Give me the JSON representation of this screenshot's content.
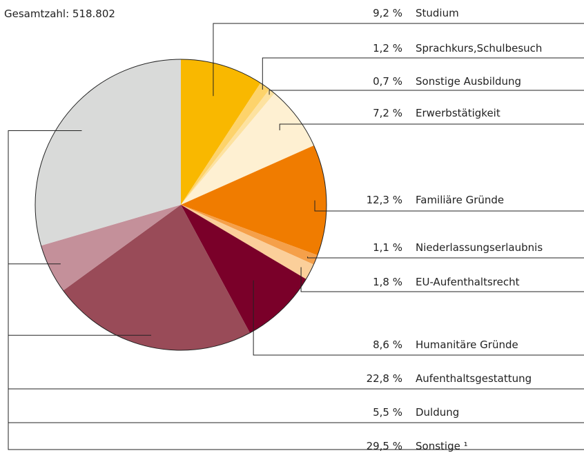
{
  "chart_data": {
    "type": "pie",
    "title": "Gesamtzahl: 518.802",
    "categories": [
      "Studium",
      "Sprachkurs,Schulbesuch",
      "Sonstige Ausbildung",
      "Erwerbstätigkeit",
      "Familiäre Gründe",
      "Niederlassungserlaubnis",
      "EU-Aufenthaltsrecht",
      "Humanitäre Gründe",
      "Aufenthaltsgestattung",
      "Duldung",
      "Sonstige ¹"
    ],
    "values": [
      9.2,
      1.2,
      0.7,
      7.2,
      12.3,
      1.1,
      1.8,
      8.6,
      22.8,
      5.5,
      29.5
    ],
    "value_labels": [
      "9,2 %",
      "1,2 %",
      "0,7 %",
      "7,2 %",
      "12,3 %",
      "1,1 %",
      "1,8 %",
      "8,6 %",
      "22,8 %",
      "5,5 %",
      "29,5 %"
    ],
    "colors": [
      "#f9b800",
      "#fdd36b",
      "#fde2a0",
      "#fef0d2",
      "#f07c00",
      "#f5a04a",
      "#fbcf9a",
      "#7a0029",
      "#994b58",
      "#c4909a",
      "#d9dad9"
    ]
  }
}
